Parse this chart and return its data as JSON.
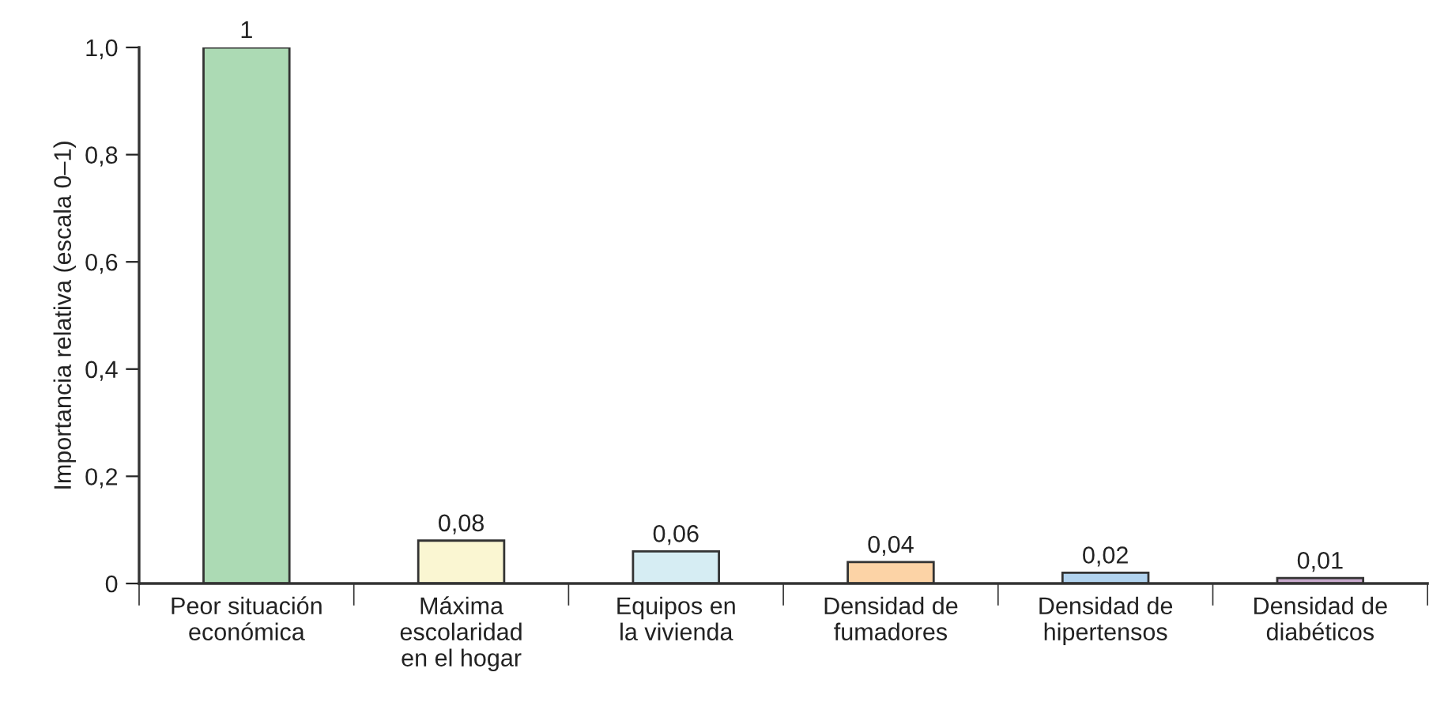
{
  "chart_data": {
    "type": "bar",
    "ylabel": "Importancia relativa (escala 0–1)",
    "categories": [
      "Peor situación\neconómica",
      "Máxima\nescolaridad\nen el hogar",
      "Equipos en\nla vivienda",
      "Densidad de\nfumadores",
      "Densidad de\nhipertensos",
      "Densidad de\ndiabéticos"
    ],
    "values": [
      1,
      0.08,
      0.06,
      0.04,
      0.02,
      0.01
    ],
    "colors": [
      "#acdab4",
      "#faf6d2",
      "#d6edf3",
      "#fcd3a6",
      "#b2d3ef",
      "#c7a9cc"
    ],
    "value_labels": [
      "1",
      "0,08",
      "0,06",
      "0,04",
      "0,02",
      "0,01"
    ],
    "ylim": [
      0,
      1.0
    ],
    "yticks": [
      {
        "value": 0,
        "label": "0"
      },
      {
        "value": 0.2,
        "label": "0,2"
      },
      {
        "value": 0.4,
        "label": "0,4"
      },
      {
        "value": 0.6,
        "label": "0,6"
      },
      {
        "value": 0.8,
        "label": "0,8"
      },
      {
        "value": 1.0,
        "label": "1,0"
      }
    ],
    "grid": false,
    "legend": false
  }
}
